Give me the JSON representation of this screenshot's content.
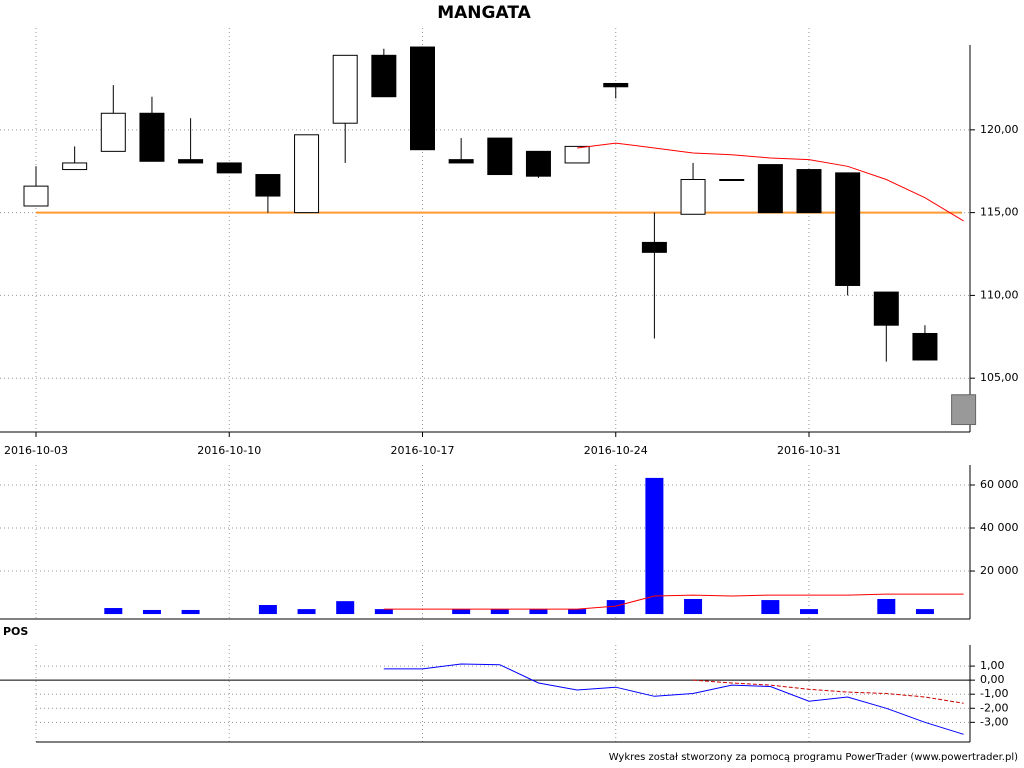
{
  "chart_data": [
    {
      "type": "candlestick",
      "title": "MANGATA",
      "categories": [
        "2016-10-03",
        null,
        null,
        null,
        null,
        "2016-10-10",
        null,
        null,
        null,
        null,
        "2016-10-17",
        null,
        null,
        null,
        null,
        "2016-10-24",
        null,
        null,
        null,
        null,
        "2016-10-31",
        null,
        null,
        null,
        null
      ],
      "series": [
        {
          "open": [
            115.4,
            117.6,
            118.7,
            121.0,
            118.2,
            118.0,
            117.3,
            115.0,
            120.4,
            124.5,
            125.0,
            118.2,
            119.5,
            118.7,
            118.0,
            122.8,
            113.2,
            114.9,
            117.0,
            117.9,
            117.6,
            117.4,
            110.2,
            107.7,
            104.0
          ],
          "high": [
            117.8,
            119.0,
            122.7,
            122.0,
            120.7,
            118.0,
            117.3,
            119.7,
            124.5,
            124.9,
            125.0,
            119.5,
            119.5,
            118.7,
            119.0,
            122.8,
            115.0,
            118.0,
            117.0,
            117.9,
            117.6,
            117.4,
            110.2,
            108.2,
            104.0
          ],
          "low": [
            115.4,
            117.6,
            118.7,
            118.1,
            118.0,
            117.4,
            115.0,
            115.0,
            118.0,
            122.0,
            118.8,
            118.0,
            117.3,
            117.1,
            118.0,
            121.9,
            107.4,
            114.9,
            117.0,
            115.0,
            115.0,
            110.0,
            106.0,
            106.1,
            102.2
          ],
          "close": [
            116.6,
            118.0,
            121.0,
            118.1,
            118.0,
            117.4,
            116.0,
            119.7,
            124.5,
            122.0,
            118.8,
            118.0,
            117.3,
            117.2,
            119.0,
            122.6,
            112.6,
            117.0,
            117.0,
            115.0,
            115.0,
            110.6,
            108.2,
            106.1,
            102.2
          ]
        }
      ],
      "up_color": "#ffffff",
      "down_color": "#000000",
      "last_color": "#999999",
      "hline": {
        "value": 115.0,
        "color": "#ff9933"
      },
      "lines": [
        {
          "color": "#ff0000",
          "values": [
            null,
            null,
            null,
            null,
            null,
            null,
            null,
            null,
            null,
            null,
            null,
            null,
            null,
            null,
            118.9,
            119.2,
            118.9,
            118.6,
            118.5,
            118.3,
            118.2,
            117.8,
            117.0,
            115.9,
            114.5
          ]
        }
      ],
      "ylim": [
        101.75,
        126.15
      ],
      "yticks": [
        {
          "value": 105,
          "label": "105,00"
        },
        {
          "value": 110,
          "label": "110,00"
        },
        {
          "value": 115,
          "label": "115,00"
        },
        {
          "value": 120,
          "label": "120,00"
        }
      ],
      "grid": true
    },
    {
      "type": "bar",
      "values": [
        0,
        0,
        2800,
        1900,
        1900,
        0,
        4200,
        2300,
        6000,
        2300,
        0,
        2300,
        2300,
        2300,
        2300,
        6500,
        63300,
        7000,
        0,
        6500,
        2300,
        0,
        7000,
        2300,
        0
      ],
      "color": "#0000ff",
      "lines": [
        {
          "color": "#ff0000",
          "values": [
            null,
            null,
            null,
            null,
            null,
            null,
            null,
            null,
            null,
            2300,
            2300,
            2300,
            2300,
            2300,
            2300,
            3700,
            8400,
            8800,
            8400,
            8800,
            8800,
            8800,
            9300,
            9300,
            9300
          ]
        }
      ],
      "ylim": [
        -2300,
        69300
      ],
      "yticks": [
        {
          "value": 20000,
          "label": "20 000"
        },
        {
          "value": 40000,
          "label": "40 000"
        },
        {
          "value": 60000,
          "label": "60 000"
        }
      ],
      "grid": true
    },
    {
      "type": "line",
      "title": "POS",
      "series": [
        {
          "color": "#0000ff",
          "values": [
            null,
            null,
            null,
            null,
            null,
            null,
            null,
            null,
            null,
            0.8,
            0.8,
            1.15,
            1.1,
            -0.2,
            -0.7,
            -0.5,
            -1.15,
            -0.95,
            -0.35,
            -0.45,
            -1.5,
            -1.2,
            -2.0,
            -3.0,
            -3.85
          ]
        },
        {
          "color": "#cc0000",
          "dashed": true,
          "values": [
            null,
            null,
            null,
            null,
            null,
            null,
            null,
            null,
            null,
            null,
            null,
            null,
            null,
            null,
            null,
            null,
            null,
            0.0,
            -0.2,
            -0.35,
            -0.65,
            -0.85,
            -0.95,
            -1.2,
            -1.65
          ]
        }
      ],
      "ylim": [
        -4.4,
        2.5
      ],
      "yticks": [
        {
          "value": -3,
          "label": "-3,00"
        },
        {
          "value": -2,
          "label": "-2,00"
        },
        {
          "value": -1,
          "label": "-1,00"
        },
        {
          "value": 0,
          "label": "0,00"
        },
        {
          "value": 1,
          "label": "1,00"
        }
      ],
      "zero_line": true,
      "grid": true
    }
  ],
  "footer": "Wykres został stworzony za pomocą programu PowerTrader (www.powertrader.pl)"
}
